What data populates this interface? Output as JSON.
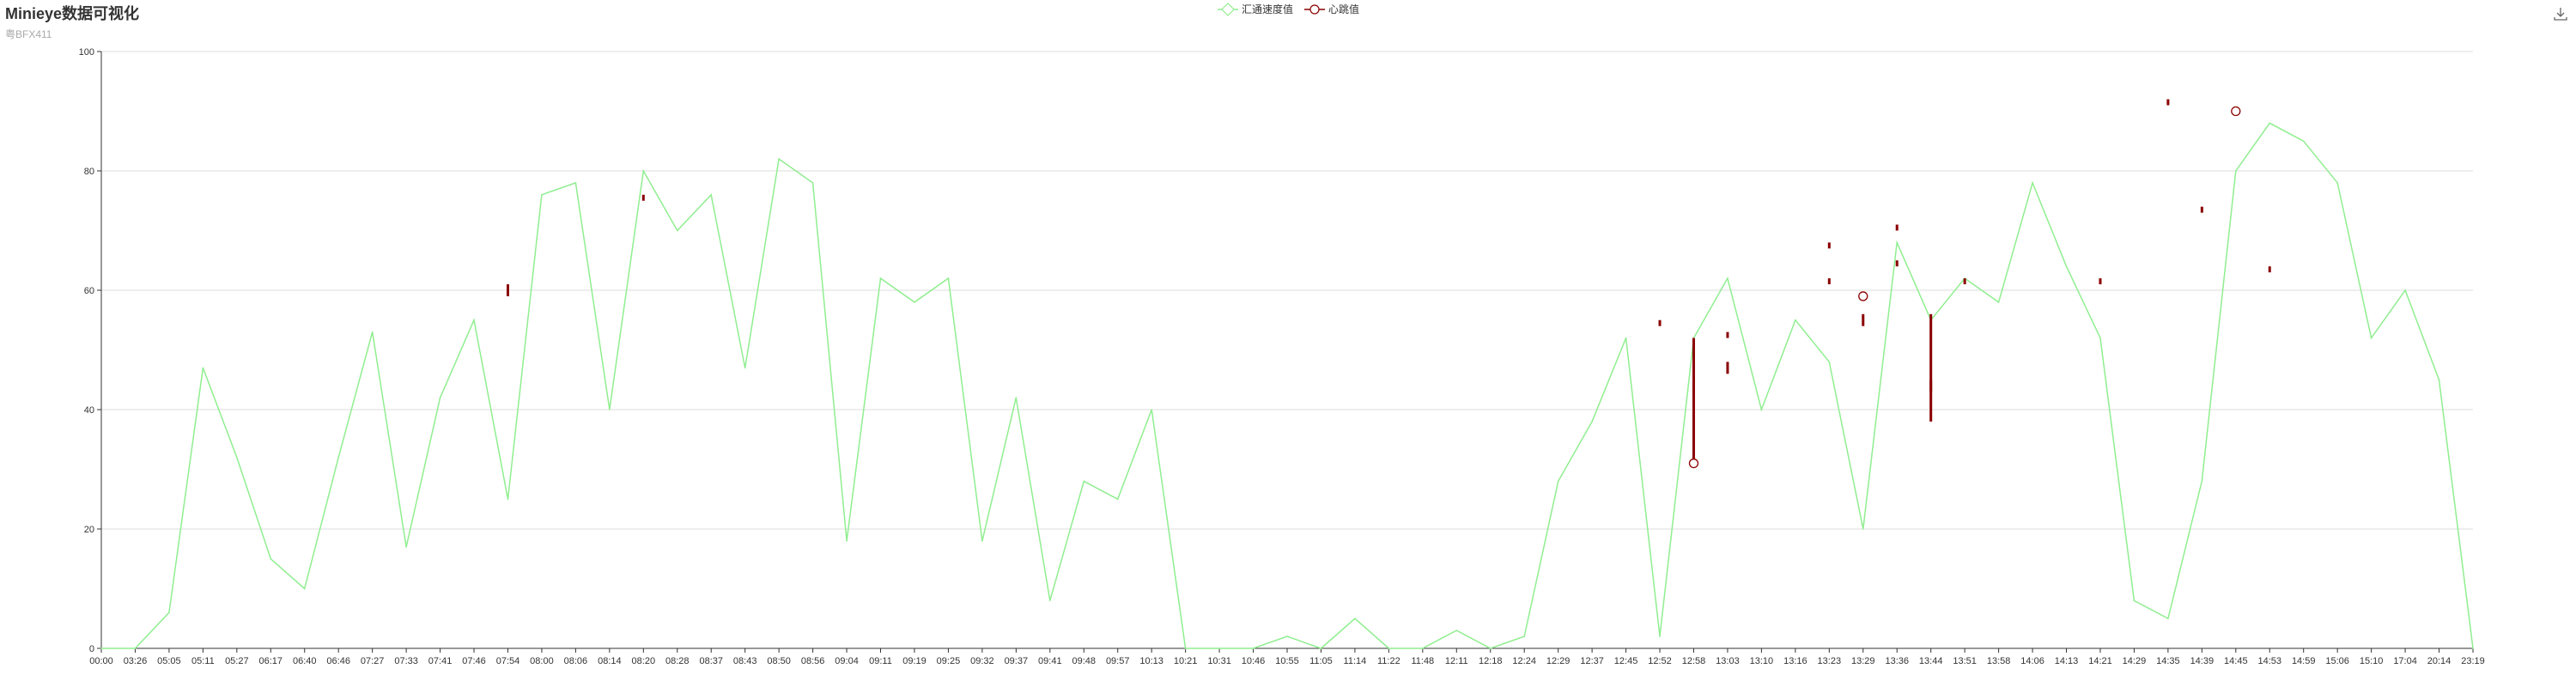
{
  "header": {
    "title": "Minieye数据可视化",
    "subtitle": "粤BFX411"
  },
  "icons": {
    "download": "download-icon"
  },
  "colors": {
    "speed": "#90ee90",
    "heartbeat": "#8b0000",
    "grid": "#dddddd",
    "axis": "#333333"
  },
  "chart_data": {
    "type": "line",
    "title": "Minieye数据可视化",
    "subtitle": "粤BFX411",
    "legend": {
      "placement": "top-center",
      "items": [
        "汇通速度值",
        "心跳值"
      ]
    },
    "ylim": [
      0,
      100
    ],
    "yticks": [
      0,
      20,
      40,
      60,
      80,
      100
    ],
    "grid": true,
    "x": [
      "00:00",
      "03:26",
      "05:05",
      "05:11",
      "05:27",
      "06:17",
      "06:40",
      "06:46",
      "07:27",
      "07:33",
      "07:41",
      "07:46",
      "07:54",
      "08:00",
      "08:06",
      "08:14",
      "08:20",
      "08:28",
      "08:37",
      "08:43",
      "08:50",
      "08:56",
      "09:04",
      "09:11",
      "09:19",
      "09:25",
      "09:32",
      "09:37",
      "09:41",
      "09:48",
      "09:57",
      "10:13",
      "10:21",
      "10:31",
      "10:46",
      "10:55",
      "11:05",
      "11:14",
      "11:22",
      "11:48",
      "12:11",
      "12:18",
      "12:24",
      "12:29",
      "12:37",
      "12:45",
      "12:52",
      "12:58",
      "13:03",
      "13:10",
      "13:16",
      "13:23",
      "13:29",
      "13:36",
      "13:44",
      "13:51",
      "13:58",
      "14:06",
      "14:13",
      "14:21",
      "14:29",
      "14:35",
      "14:39",
      "14:45",
      "14:53",
      "14:59",
      "15:06",
      "15:10",
      "17:04",
      "20:14",
      "23:19"
    ],
    "series": [
      {
        "name": "汇通速度值",
        "type": "line",
        "values": [
          0,
          0,
          6,
          47,
          32,
          15,
          10,
          32,
          53,
          17,
          42,
          55,
          25,
          76,
          78,
          40,
          80,
          70,
          76,
          47,
          82,
          78,
          18,
          62,
          58,
          62,
          18,
          42,
          8,
          28,
          25,
          40,
          0,
          0,
          0,
          2,
          0,
          5,
          0,
          0,
          3,
          0,
          2,
          28,
          38,
          52,
          2,
          52,
          62,
          40,
          55,
          48,
          20,
          68,
          55,
          62,
          58,
          78,
          64,
          52,
          8,
          5,
          28,
          80,
          88,
          85,
          78,
          52,
          60,
          45,
          0
        ]
      },
      {
        "name": "心跳值",
        "type": "candlestick",
        "points": [
          {
            "x": "07:54",
            "low": 59,
            "high": 61
          },
          {
            "x": "08:20",
            "low": 75,
            "high": 76
          },
          {
            "x": "12:52",
            "low": 54,
            "high": 55
          },
          {
            "x": "12:58",
            "low": 31,
            "high": 52,
            "marker": 31
          },
          {
            "x": "13:03",
            "low": 52,
            "high": 53
          },
          {
            "x": "13:03",
            "low": 46,
            "high": 48
          },
          {
            "x": "13:23",
            "low": 67,
            "high": 68
          },
          {
            "x": "13:23",
            "low": 61,
            "high": 62
          },
          {
            "x": "13:29",
            "low": 54,
            "high": 56
          },
          {
            "x": "13:29",
            "low": 59,
            "high": 59,
            "marker": 59
          },
          {
            "x": "13:36",
            "low": 70,
            "high": 71
          },
          {
            "x": "13:36",
            "low": 64,
            "high": 65
          },
          {
            "x": "13:44",
            "low": 43,
            "high": 45
          },
          {
            "x": "13:44",
            "low": 38,
            "high": 56
          },
          {
            "x": "13:51",
            "low": 61,
            "high": 62
          },
          {
            "x": "14:21",
            "low": 61,
            "high": 62
          },
          {
            "x": "14:35",
            "low": 91,
            "high": 92
          },
          {
            "x": "14:39",
            "low": 73,
            "high": 74
          },
          {
            "x": "14:45",
            "low": 90,
            "high": 90,
            "marker": 90
          },
          {
            "x": "14:53",
            "low": 63,
            "high": 64
          }
        ]
      }
    ]
  }
}
